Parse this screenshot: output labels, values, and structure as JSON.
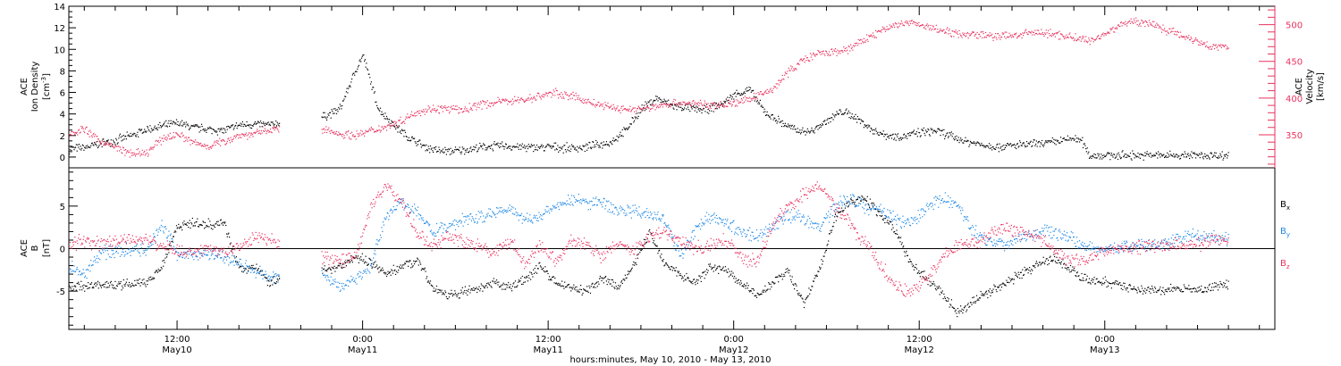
{
  "colors": {
    "black": "#000000",
    "pink": "#e8325f",
    "blue": "#1e88e5",
    "axis": "#000000"
  },
  "x_axis": {
    "title": "hours:minutes, May 10, 2010 - May 13, 2010",
    "tick_hours": [
      12,
      24,
      36,
      48,
      60,
      72
    ],
    "tick_times": [
      "12:00",
      "0:00",
      "12:00",
      "0:00",
      "12:00",
      "0:00"
    ],
    "tick_dates": [
      "May10",
      "May11",
      "May11",
      "May12",
      "May12",
      "May13"
    ],
    "range_hours": [
      5.0,
      83.0
    ]
  },
  "chart_data": [
    {
      "type": "scatter",
      "panel": "top",
      "left_axis_label": [
        "ACE",
        "Ion Density",
        "[cm^-3]"
      ],
      "right_axis_label": [
        "ACE",
        "Velocity",
        "[km/s]"
      ],
      "left_ylim": [
        -1,
        14
      ],
      "left_ticks": [
        0,
        2,
        4,
        6,
        8,
        10,
        12,
        14
      ],
      "right_ylim": [
        305,
        525
      ],
      "right_ticks": [
        350,
        400,
        450,
        500
      ],
      "data_gap_hours": [
        18.6,
        21.3
      ],
      "series": [
        {
          "axis": "left",
          "color": "#000000",
          "x": [
            5.0,
            6.0,
            7.0,
            8.0,
            9.0,
            10.0,
            11.0,
            12.0,
            13.0,
            14.0,
            15.0,
            16.0,
            17.0,
            18.0,
            18.5,
            21.5,
            22.5,
            23.5,
            24.0,
            24.5,
            25.0,
            26.0,
            27.0,
            28.0,
            29.0,
            30.0,
            31.0,
            32.0,
            33.0,
            34.0,
            35.0,
            36.0,
            37.0,
            38.0,
            39.0,
            40.0,
            41.0,
            42.0,
            43.0,
            44.0,
            45.0,
            46.0,
            47.0,
            48.0,
            49.0,
            50.0,
            51.0,
            52.0,
            53.0,
            54.0,
            55.0,
            56.0,
            57.0,
            58.0,
            59.0,
            60.0,
            61.0,
            62.0,
            63.0,
            64.0,
            65.0,
            66.0,
            67.0,
            68.0,
            69.0,
            70.0,
            70.5,
            71.0,
            72.0,
            73.0,
            74.0,
            75.0,
            76.0,
            77.0,
            78.0,
            79.0,
            80.0
          ],
          "y": [
            0.8,
            0.9,
            1.3,
            1.6,
            2.0,
            2.6,
            2.9,
            3.2,
            2.8,
            2.6,
            2.5,
            3.0,
            3.1,
            3.0,
            3.2,
            3.8,
            4.5,
            8.0,
            9.5,
            7.0,
            4.5,
            3.0,
            1.8,
            1.0,
            0.6,
            0.6,
            0.8,
            1.0,
            1.1,
            1.0,
            0.9,
            1.0,
            0.9,
            0.9,
            1.1,
            1.4,
            2.5,
            4.5,
            5.5,
            4.8,
            4.6,
            4.4,
            4.8,
            5.8,
            6.3,
            4.2,
            3.3,
            2.5,
            2.4,
            3.4,
            4.3,
            3.6,
            2.5,
            2.0,
            2.0,
            2.3,
            2.5,
            2.0,
            1.5,
            1.2,
            1.0,
            1.1,
            1.2,
            1.3,
            1.5,
            1.8,
            1.5,
            0.2,
            0.2,
            0.2,
            0.2,
            0.2,
            0.2,
            0.2,
            0.2,
            0.2,
            0.2
          ]
        },
        {
          "axis": "right",
          "color": "#e8325f",
          "x": [
            5.0,
            6.0,
            7.0,
            8.0,
            9.0,
            10.0,
            11.0,
            12.0,
            13.0,
            14.0,
            15.0,
            16.0,
            17.0,
            18.0,
            18.5,
            21.5,
            22.5,
            23.5,
            24.5,
            25.5,
            26.5,
            27.5,
            28.5,
            29.5,
            30.5,
            31.5,
            32.5,
            33.5,
            34.5,
            35.5,
            36.5,
            37.5,
            38.5,
            39.5,
            40.5,
            41.5,
            42.5,
            43.5,
            44.5,
            45.5,
            46.5,
            47.5,
            48.5,
            49.5,
            50.5,
            51.5,
            52.5,
            53.5,
            54.5,
            55.5,
            56.5,
            57.5,
            58.5,
            59.5,
            60.5,
            61.5,
            62.5,
            63.5,
            64.5,
            65.5,
            66.5,
            67.5,
            68.5,
            69.5,
            70.5,
            71.0,
            72.0,
            73.0,
            74.0,
            75.0,
            76.0,
            77.0,
            78.0,
            79.0,
            80.0
          ],
          "y": [
            352,
            358,
            342,
            333,
            325,
            325,
            345,
            352,
            340,
            335,
            342,
            350,
            352,
            358,
            358,
            357,
            352,
            350,
            356,
            362,
            370,
            382,
            386,
            386,
            384,
            392,
            394,
            398,
            398,
            404,
            408,
            403,
            396,
            390,
            386,
            385,
            387,
            392,
            394,
            393,
            390,
            392,
            396,
            403,
            413,
            436,
            453,
            461,
            463,
            468,
            481,
            492,
            501,
            503,
            497,
            493,
            488,
            488,
            485,
            485,
            487,
            490,
            488,
            485,
            481,
            478,
            488,
            501,
            505,
            502,
            493,
            486,
            478,
            470,
            470
          ]
        }
      ]
    },
    {
      "type": "scatter",
      "panel": "bottom",
      "left_axis_label": [
        "ACE",
        "B",
        "[nT]"
      ],
      "ylim": [
        -9.5,
        9.5
      ],
      "ticks": [
        -5,
        0,
        5
      ],
      "zero_line": true,
      "legend": [
        "Bx",
        "By",
        "Bz"
      ],
      "data_gap_hours": [
        18.6,
        21.3
      ],
      "series": [
        {
          "name": "Bx",
          "color": "#000000",
          "x": [
            5.0,
            6.0,
            7.0,
            8.0,
            9.0,
            10.0,
            11.0,
            12.0,
            13.0,
            14.0,
            15.0,
            16.0,
            17.0,
            18.0,
            18.5,
            21.5,
            22.5,
            23.5,
            24.5,
            25.5,
            26.5,
            27.5,
            28.5,
            29.5,
            30.5,
            31.5,
            32.5,
            33.5,
            34.5,
            35.5,
            36.5,
            37.5,
            38.5,
            39.5,
            40.5,
            41.5,
            42.5,
            43.5,
            44.5,
            45.5,
            46.5,
            47.5,
            48.5,
            49.5,
            50.5,
            51.5,
            52.5,
            53.5,
            54.5,
            55.5,
            56.5,
            57.5,
            58.5,
            59.5,
            60.5,
            61.5,
            62.5,
            63.5,
            64.5,
            65.5,
            66.5,
            67.5,
            68.5,
            69.5,
            70.5,
            71.5,
            72.5,
            73.5,
            74.5,
            75.5,
            76.5,
            77.5,
            78.5,
            79.5,
            80.0
          ],
          "y": [
            -4.5,
            -4.3,
            -4.2,
            -4.3,
            -4.1,
            -3.9,
            -2.0,
            2.8,
            3.0,
            2.9,
            3.2,
            -2.5,
            -2.0,
            -4.0,
            -3.5,
            -2.5,
            -2.0,
            -1.0,
            -1.5,
            -3.0,
            -2.0,
            -1.2,
            -4.5,
            -5.5,
            -5.0,
            -4.8,
            -4.0,
            -4.5,
            -3.5,
            -2.0,
            -4.0,
            -4.5,
            -5.0,
            -3.5,
            -4.5,
            -2.0,
            2.0,
            -1.5,
            -3.0,
            -4.0,
            -2.0,
            -2.5,
            -4.0,
            -5.5,
            -4.0,
            -2.5,
            -6.5,
            -2.5,
            3.5,
            5.5,
            6.0,
            4.0,
            2.0,
            -2.0,
            -3.5,
            -5.5,
            -7.5,
            -6.0,
            -5.0,
            -4.0,
            -3.0,
            -2.0,
            -1.0,
            -2.0,
            -3.5,
            -3.8,
            -4.0,
            -4.5,
            -4.8,
            -4.9,
            -4.7,
            -4.8,
            -4.7,
            -4.3,
            -4.2
          ]
        },
        {
          "name": "By",
          "color": "#1e88e5",
          "x": [
            5.0,
            6.0,
            7.0,
            8.0,
            9.0,
            10.0,
            11.0,
            12.0,
            13.0,
            14.0,
            15.0,
            16.0,
            17.0,
            18.0,
            18.5,
            21.5,
            22.5,
            23.5,
            24.5,
            25.5,
            26.5,
            27.5,
            28.5,
            29.5,
            30.5,
            31.5,
            32.5,
            33.5,
            34.5,
            35.5,
            36.5,
            37.5,
            38.5,
            39.5,
            40.5,
            41.5,
            42.5,
            43.5,
            44.5,
            45.5,
            46.5,
            47.5,
            48.5,
            49.5,
            50.5,
            51.5,
            52.5,
            53.5,
            54.5,
            55.5,
            56.5,
            57.5,
            58.5,
            59.5,
            60.5,
            61.5,
            62.5,
            63.5,
            64.5,
            65.5,
            66.5,
            67.5,
            68.5,
            69.5,
            70.5,
            71.5,
            72.5,
            73.5,
            74.5,
            75.5,
            76.5,
            77.5,
            78.5,
            79.5,
            80.0
          ],
          "y": [
            -2.0,
            -3.0,
            -0.5,
            -0.2,
            0.0,
            -0.3,
            3.0,
            -0.5,
            -0.8,
            -0.6,
            -1.0,
            -1.5,
            -2.5,
            -3.5,
            -3.3,
            -3.0,
            -4.5,
            -3.5,
            -2.0,
            4.0,
            5.5,
            4.5,
            2.0,
            2.5,
            3.5,
            3.8,
            4.2,
            4.8,
            3.5,
            4.0,
            5.0,
            5.8,
            5.5,
            5.5,
            4.5,
            4.5,
            4.0,
            3.5,
            -1.0,
            2.5,
            4.0,
            3.0,
            2.0,
            1.5,
            2.5,
            4.0,
            3.5,
            2.5,
            5.0,
            6.0,
            5.0,
            4.5,
            3.5,
            3.0,
            5.0,
            6.0,
            5.0,
            2.0,
            1.0,
            0.5,
            1.5,
            2.0,
            2.2,
            1.5,
            0.5,
            0.0,
            0.0,
            0.3,
            0.5,
            0.5,
            1.0,
            1.5,
            1.5,
            1.2,
            1.2
          ]
        },
        {
          "name": "Bz",
          "color": "#e8325f",
          "x": [
            5.0,
            6.0,
            7.0,
            8.0,
            9.0,
            10.0,
            11.0,
            12.0,
            13.0,
            14.0,
            15.0,
            16.0,
            17.0,
            18.0,
            18.5,
            21.5,
            22.5,
            23.5,
            24.5,
            25.5,
            26.5,
            27.5,
            28.5,
            29.5,
            30.5,
            31.5,
            32.5,
            33.5,
            34.5,
            35.5,
            36.5,
            37.5,
            38.5,
            39.5,
            40.5,
            41.5,
            42.5,
            43.5,
            44.5,
            45.5,
            46.5,
            47.5,
            48.5,
            49.5,
            50.5,
            51.5,
            52.5,
            53.5,
            54.5,
            55.5,
            56.5,
            57.5,
            58.5,
            59.5,
            60.5,
            61.5,
            62.5,
            63.5,
            64.5,
            65.5,
            66.5,
            67.5,
            68.5,
            69.5,
            70.5,
            71.5,
            72.5,
            73.5,
            74.5,
            75.5,
            76.5,
            77.5,
            78.5,
            79.5,
            80.0
          ],
          "y": [
            0.5,
            1.0,
            0.5,
            0.8,
            1.2,
            1.0,
            0.5,
            -0.3,
            -0.5,
            0.0,
            -0.5,
            0.5,
            1.5,
            1.0,
            0.5,
            -1.0,
            -1.5,
            -1.0,
            5.0,
            7.5,
            5.5,
            2.0,
            0.5,
            1.5,
            1.0,
            0.5,
            -0.5,
            1.0,
            -2.0,
            0.5,
            -1.5,
            1.0,
            0.5,
            -1.0,
            0.8,
            -0.5,
            1.5,
            2.0,
            1.0,
            0.0,
            0.5,
            1.0,
            -1.0,
            -1.5,
            3.0,
            5.0,
            6.5,
            7.5,
            5.0,
            3.0,
            0.5,
            -2.0,
            -4.5,
            -5.0,
            -3.5,
            -1.0,
            0.5,
            0.5,
            1.5,
            2.5,
            2.0,
            1.5,
            0.0,
            -1.0,
            -1.5,
            -0.5,
            0.0,
            0.0,
            0.3,
            0.5,
            0.5,
            0.5,
            0.8,
            1.0,
            1.2
          ]
        }
      ]
    }
  ]
}
